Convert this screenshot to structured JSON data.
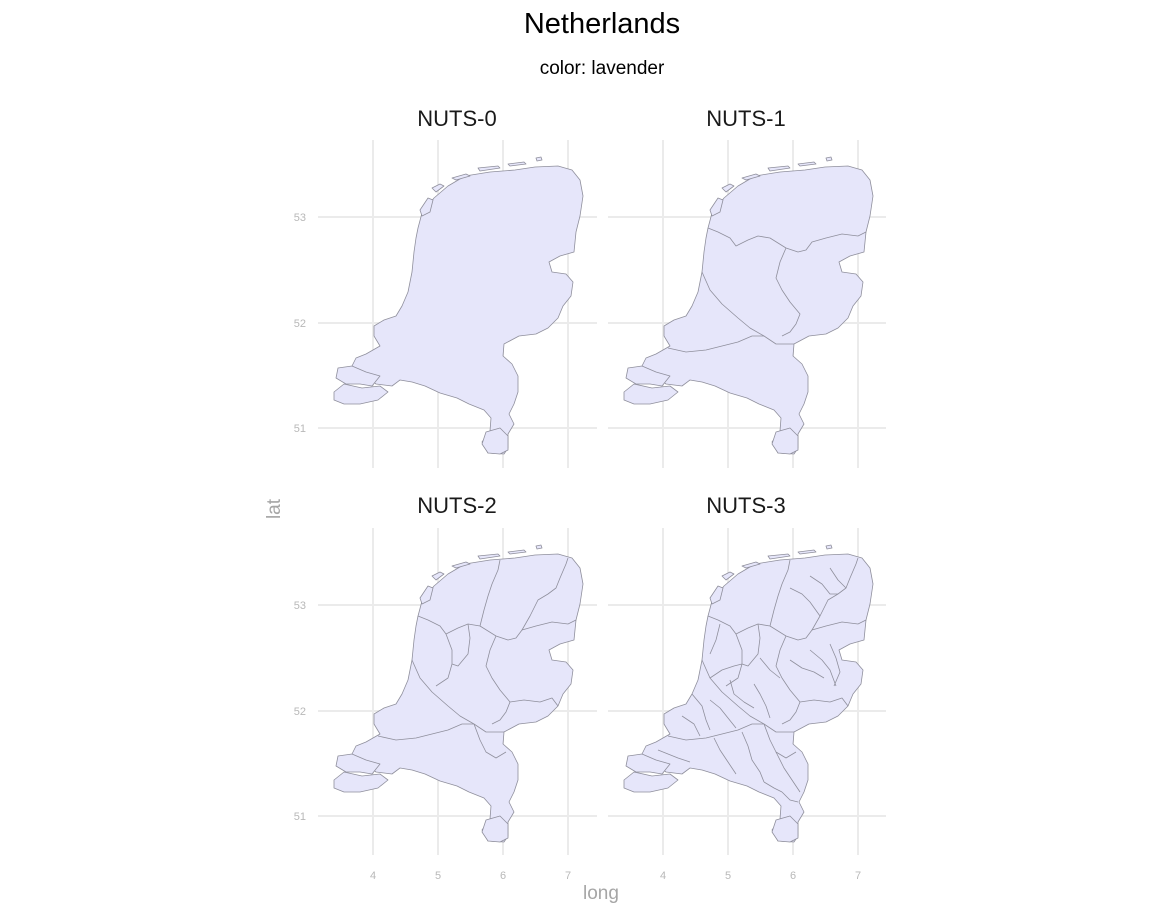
{
  "title": "Netherlands",
  "subtitle": "color: lavender",
  "fill_color": "#e6e6fa",
  "axes": {
    "xlabel": "long",
    "ylabel": "lat",
    "x_ticks": [
      "4",
      "5",
      "6",
      "7"
    ],
    "y_ticks": [
      "51",
      "52",
      "53"
    ]
  },
  "panels": [
    {
      "label": "NUTS-0",
      "level": 0
    },
    {
      "label": "NUTS-1",
      "level": 1
    },
    {
      "label": "NUTS-2",
      "level": 2
    },
    {
      "label": "NUTS-3",
      "level": 3
    }
  ]
}
